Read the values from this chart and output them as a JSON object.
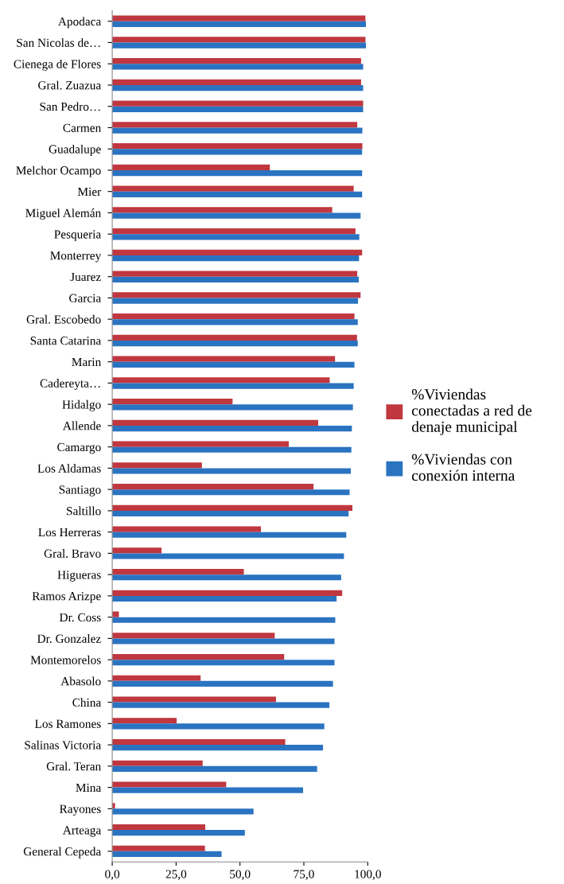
{
  "chart_data": {
    "type": "bar",
    "orientation": "horizontal",
    "categories": [
      "Apodaca",
      "San Nicolas de…",
      "Cienega de Flores",
      "Gral. Zuazua",
      "San Pedro…",
      "Carmen",
      "Guadalupe",
      "Melchor Ocampo",
      "Mier",
      "Miguel Alemán",
      "Pesqueria",
      "Monterrey",
      "Juarez",
      "Garcia",
      "Gral. Escobedo",
      "Santa Catarina",
      "Marin",
      "Cadereyta…",
      "Hidalgo",
      "Allende",
      "Camargo",
      "Los Aldamas",
      "Santiago",
      "Saltillo",
      "Los Herreras",
      "Gral. Bravo",
      "Higueras",
      "Ramos Arizpe",
      "Dr. Coss",
      "Dr. Gonzalez",
      "Montemorelos",
      "Abasolo",
      "China",
      "Los Ramones",
      "Salinas Victoria",
      "Gral. Teran",
      "Mina",
      "Rayones",
      "Arteaga",
      "General Cepeda"
    ],
    "series": [
      {
        "name": "%Viviendas\nconectadas a red de\ndenaje municipal",
        "color": "#c0373f",
        "values": [
          99.1,
          99.1,
          97.4,
          97.4,
          98.2,
          95.9,
          97.9,
          61.7,
          94.5,
          86.1,
          95.2,
          97.8,
          95.9,
          97.2,
          94.8,
          95.8,
          87.2,
          85.1,
          47.1,
          80.6,
          69.1,
          35.1,
          78.8,
          94.0,
          58.2,
          19.3,
          51.5,
          90.0,
          2.6,
          63.6,
          67.3,
          34.6,
          64.1,
          25.2,
          67.7,
          35.4,
          44.6,
          1.1,
          36.4,
          36.3
        ]
      },
      {
        "name": "%Viviendas con\nconexión interna",
        "color": "#2a73c1",
        "values": [
          99.3,
          99.3,
          98.2,
          98.2,
          98.2,
          97.9,
          97.8,
          97.8,
          97.8,
          97.2,
          96.7,
          96.6,
          96.5,
          96.2,
          96.1,
          96.1,
          94.8,
          94.5,
          94.2,
          93.8,
          93.6,
          93.4,
          92.9,
          92.5,
          91.6,
          90.7,
          89.6,
          87.8,
          87.3,
          87.0,
          87.0,
          86.4,
          85.0,
          83.0,
          82.5,
          80.2,
          74.7,
          55.3,
          51.9,
          42.8
        ]
      }
    ],
    "xlim": [
      0,
      100
    ],
    "xticks": [
      {
        "value": 0,
        "label": "0,0"
      },
      {
        "value": 25,
        "label": "25,0"
      },
      {
        "value": 50,
        "label": "50,0"
      },
      {
        "value": 75,
        "label": "75,0"
      },
      {
        "value": 100,
        "label": "100,0"
      }
    ],
    "legend": "right",
    "grid": false
  }
}
